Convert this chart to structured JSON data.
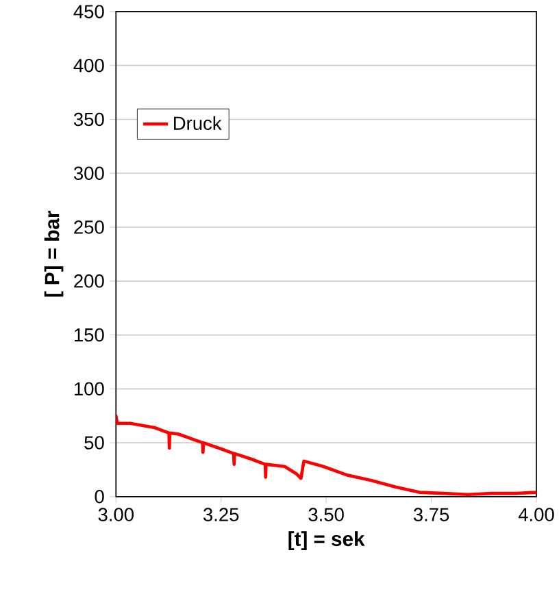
{
  "chart_data": {
    "type": "line",
    "xlabel": "[t] = sek",
    "ylabel": "[ P] = bar",
    "xlim": [
      3.0,
      4.0
    ],
    "ylim": [
      0,
      450
    ],
    "xticks": [
      {
        "value": 3.0,
        "label": "3.00"
      },
      {
        "value": 3.25,
        "label": "3.25"
      },
      {
        "value": 3.5,
        "label": "3.50"
      },
      {
        "value": 3.75,
        "label": "3.75"
      },
      {
        "value": 4.0,
        "label": "4.00"
      }
    ],
    "yticks": [
      0,
      50,
      100,
      150,
      200,
      250,
      300,
      350,
      400,
      450
    ],
    "grid": "y",
    "legend": "top left",
    "marker": "none",
    "line_style": "solid",
    "series": [
      {
        "name": "Druck",
        "color": "#ff0000",
        "x": [
          3.0,
          3.0,
          3.003,
          3.034,
          3.092,
          3.126,
          3.127,
          3.128,
          3.149,
          3.206,
          3.207,
          3.208,
          3.252,
          3.28,
          3.281,
          3.282,
          3.321,
          3.355,
          3.356,
          3.357,
          3.401,
          3.43,
          3.44,
          3.447,
          3.493,
          3.55,
          3.608,
          3.665,
          3.722,
          3.78,
          3.837,
          3.894,
          3.95,
          4.0
        ],
        "values": [
          68,
          75,
          68,
          68,
          64,
          59,
          45,
          59,
          58,
          50,
          41,
          50,
          44,
          40,
          30,
          40,
          35,
          30,
          18,
          30,
          28,
          21,
          17,
          33,
          28,
          20,
          15,
          9,
          4,
          3,
          2,
          3,
          3,
          4
        ]
      }
    ]
  }
}
